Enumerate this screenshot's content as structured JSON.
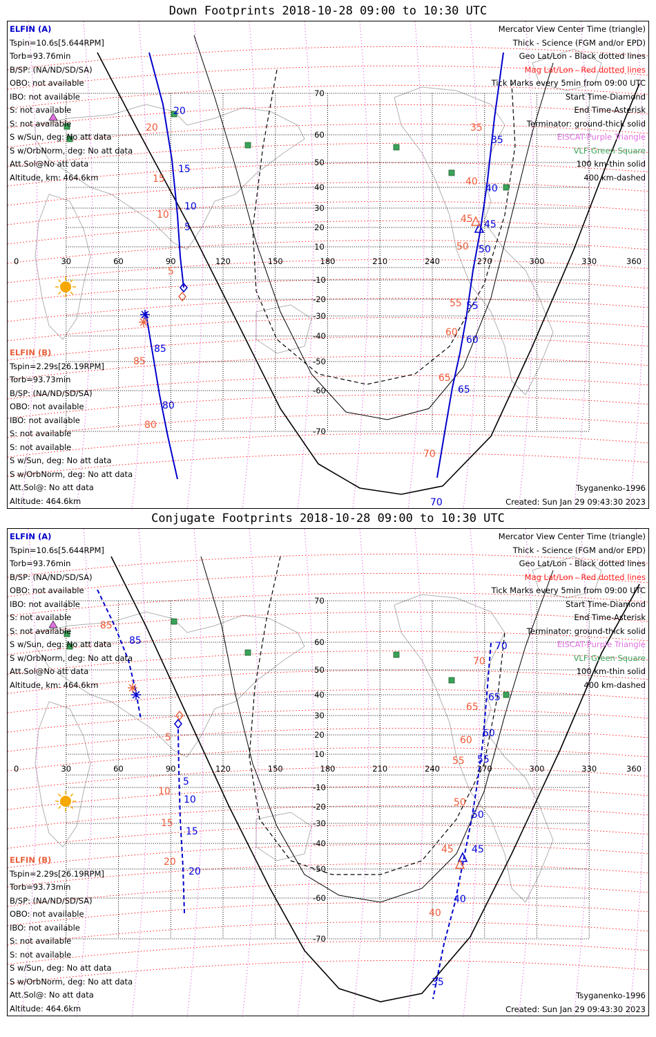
{
  "map_data": {
    "projection": "Mercator",
    "lon_ticks": [
      "0",
      "30",
      "60",
      "90",
      "120",
      "150",
      "180",
      "210",
      "240",
      "270",
      "300",
      "330",
      "360"
    ],
    "lat_ticks": [
      "70",
      "60",
      "50",
      "40",
      "30",
      "20",
      "10",
      "-10",
      "-20",
      "-30",
      "-40",
      "-50",
      "-60",
      "-70"
    ]
  },
  "colors": {
    "elfin_a": "#0000cc",
    "elfin_b": "#e8603c",
    "mag_grid": "#ff2020",
    "geo_grid": "#000000",
    "poi_purple": "#e070e0",
    "vlf_green": "#3aa35a",
    "sun": "#f5a800"
  },
  "panels": [
    {
      "title": "Down Footprints 2018-10-28 09:00 to 10:30 UTC",
      "elfin_a": {
        "header": "ELFIN (A)",
        "lines": [
          "Tspin=10.6s[5.644RPM]",
          "Torb=93.76min",
          "B/SP: (NA/ND/SD/SA)",
          "OBO: not available",
          "IBO: not available",
          "S: not available",
          "S: not available",
          "S w/Sun, deg: No att data",
          "S w/OrbNorm, deg: No att data",
          "Att.Sol@No att data",
          "Altitude, km: 464.6km"
        ]
      },
      "elfin_b": {
        "header": "ELFIN (B)",
        "lines": [
          "Tspin=2.29s[26.19RPM]",
          "Torb=93.73min",
          "B/SP: (NA/ND/SD/SA)",
          "OBO: not available",
          "IBO: not available",
          "S: not available",
          "S: not available",
          "S w/Sun, deg: No att data",
          "S w/OrbNorm, deg: No att data",
          "Att.Sol@: No att data",
          "Altitude: 464.6km"
        ]
      },
      "legend": [
        {
          "text": "Mercator View Center Time (triangle)",
          "color": "#000000"
        },
        {
          "text": "Thick - Science (FGM and/or EPD)",
          "color": "#000000"
        },
        {
          "text": "Geo Lat/Lon - Black dotted lines",
          "color": "#000000"
        },
        {
          "text": "Mag Lat/Lon - Red dotted lines",
          "color": "#ff2020"
        },
        {
          "text": "Tick Marks every 5min from 09:00 UTC",
          "color": "#000000"
        },
        {
          "text": "Start Time-Diamond",
          "color": "#000000"
        },
        {
          "text": "End Time-Asterisk",
          "color": "#000000"
        },
        {
          "text": "Terminator: ground-thick solid",
          "color": "#000000"
        },
        {
          "text": "EISCAT-Purple Triangle",
          "color": "#e070e0"
        },
        {
          "text": "VLF-Green Square",
          "color": "#3aa35a"
        },
        {
          "text": "100 km-thin solid",
          "color": "#000000"
        },
        {
          "text": "400 km-dashed",
          "color": "#000000"
        }
      ],
      "model": "Tsyganenko-1996",
      "created": "Created: Sun Jan 29 09:43:30 2023",
      "track_a_labels_1": [
        "20",
        "15",
        "10",
        "5"
      ],
      "track_b_labels_1": [
        "20",
        "15",
        "10",
        "5"
      ],
      "track_a_labels_2": [
        "35",
        "40",
        "45",
        "50",
        "55",
        "60",
        "65",
        "70"
      ],
      "track_b_labels_2": [
        "35",
        "40",
        "45",
        "50",
        "55",
        "60",
        "65",
        "70"
      ],
      "track_a_labels_3": [
        "85",
        "80"
      ],
      "track_b_labels_3": [
        "85",
        "80"
      ]
    },
    {
      "title": "Conjugate Footprints 2018-10-28 09:00 to 10:30 UTC",
      "elfin_a": {
        "header": "ELFIN (A)",
        "lines": [
          "Tspin=10.6s[5.644RPM]",
          "Torb=93.76min",
          "B/SP: (NA/ND/SD/SA)",
          "OBO: not available",
          "IBO: not available",
          "S: not available",
          "S: not available",
          "S w/Sun, deg: No att data",
          "S w/OrbNorm, deg: No att data",
          "Att.Sol@No att data",
          "Altitude, km: 464.6km"
        ]
      },
      "elfin_b": {
        "header": "ELFIN (B)",
        "lines": [
          "Tspin=2.29s[26.19RPM]",
          "Torb=93.73min",
          "B/SP: (NA/ND/SD/SA)",
          "OBO: not available",
          "IBO: not available",
          "S: not available",
          "S: not available",
          "S w/Sun, deg: No att data",
          "S w/OrbNorm, deg: No att data",
          "Att.Sol@: No att data",
          "Altitude: 464.6km"
        ]
      },
      "legend": [
        {
          "text": "Mercator View Center Time (triangle)",
          "color": "#000000"
        },
        {
          "text": "Thick - Science (FGM and/or EPD)",
          "color": "#000000"
        },
        {
          "text": "Geo Lat/Lon - Black dotted lines",
          "color": "#000000"
        },
        {
          "text": "Mag Lat/Lon - Red dotted lines",
          "color": "#ff2020"
        },
        {
          "text": "Tick Marks every 5min from 09:00 UTC",
          "color": "#000000"
        },
        {
          "text": "Start Time-Diamond",
          "color": "#000000"
        },
        {
          "text": "End Time-Asterisk",
          "color": "#000000"
        },
        {
          "text": "Terminator: ground-thick solid",
          "color": "#000000"
        },
        {
          "text": "EISCAT-Purple Triangle",
          "color": "#e070e0"
        },
        {
          "text": "VLF-Green Square",
          "color": "#3aa35a"
        },
        {
          "text": "100 km-thin solid",
          "color": "#000000"
        },
        {
          "text": "400 km-dashed",
          "color": "#000000"
        }
      ],
      "model": "Tsyganenko-1996",
      "created": "Created: Sun Jan 29 09:43:30 2023",
      "track_a_labels_1": [
        "85"
      ],
      "track_b_labels_1": [
        "85"
      ],
      "track_a_labels_2": [
        "5",
        "10",
        "15",
        "20"
      ],
      "track_b_labels_2": [
        "5",
        "10",
        "15",
        "20"
      ],
      "track_a_labels_3": [
        "70",
        "65",
        "60",
        "55",
        "50",
        "45",
        "40",
        "35"
      ],
      "track_b_labels_3": [
        "70",
        "65",
        "60",
        "55",
        "50",
        "45",
        "40"
      ]
    }
  ]
}
